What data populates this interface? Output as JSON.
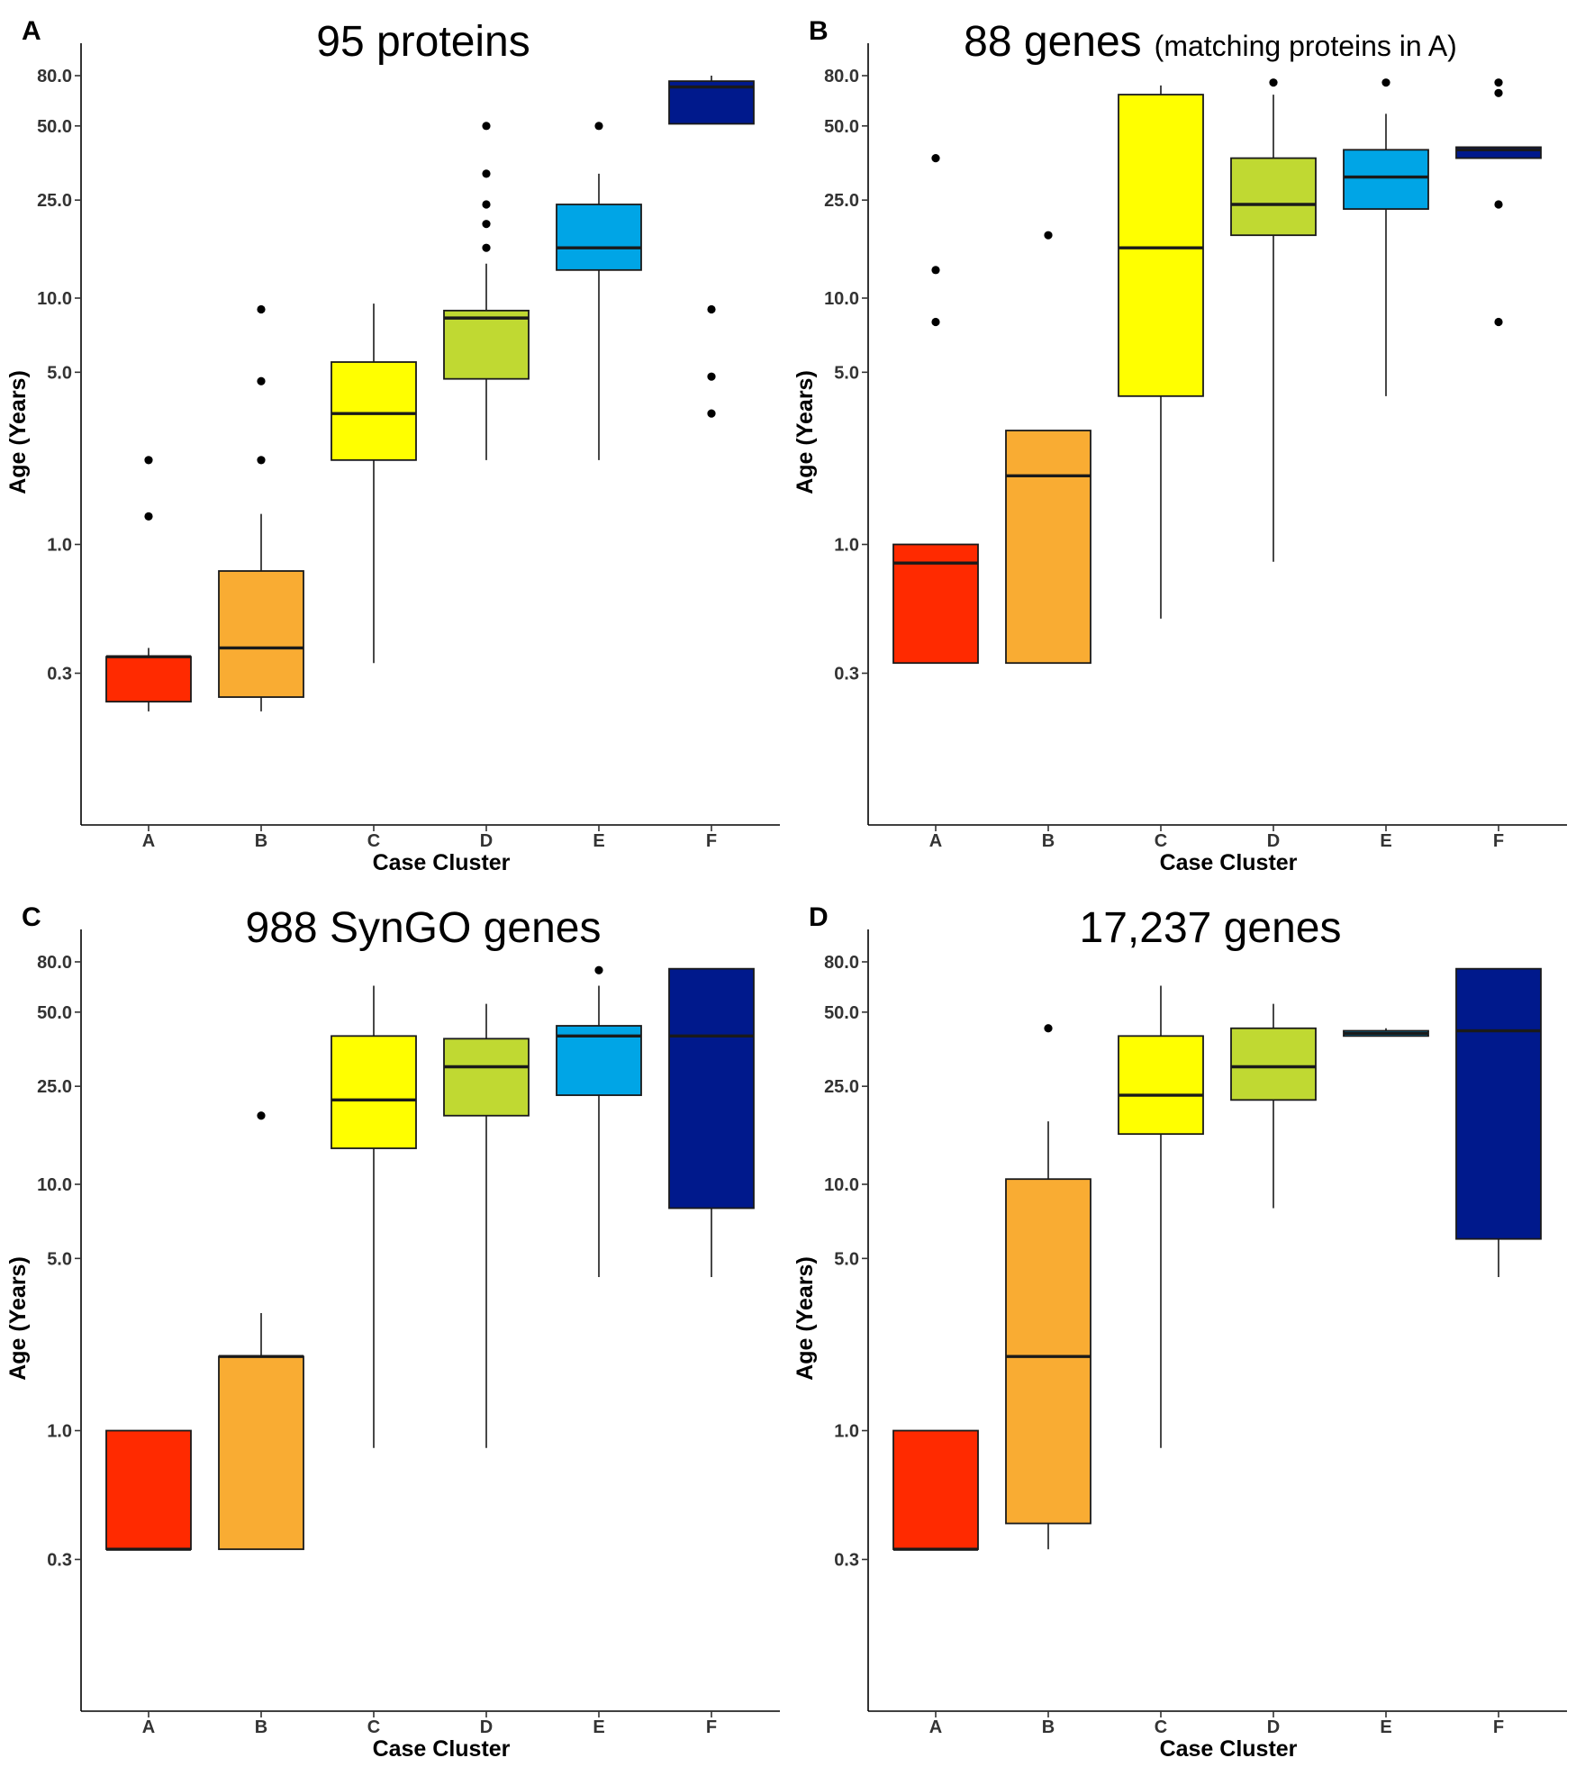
{
  "chart_data": [
    {
      "panel_label": "A",
      "type": "box",
      "title": "95 proteins",
      "subtitle": "",
      "xlabel": "Case Cluster",
      "ylabel": "Age (Years)",
      "y_scale": "log",
      "ylim": [
        0.07,
        110
      ],
      "y_ticks": [
        "80.0",
        "50.0",
        "25.0",
        "10.0",
        "5.0",
        "1.0",
        "0.3"
      ],
      "categories": [
        "A",
        "B",
        "C",
        "D",
        "E",
        "F"
      ],
      "colors": [
        "#ff2a00",
        "#f9ac33",
        "#ffff00",
        "#c0d932",
        "#00a5e6",
        "#00198c"
      ],
      "boxes": [
        {
          "whisker_low": 0.21,
          "q1": 0.23,
          "median": 0.35,
          "q3": 0.35,
          "whisker_high": 0.38,
          "outliers": [
            2.2,
            1.3
          ]
        },
        {
          "whisker_low": 0.21,
          "q1": 0.24,
          "median": 0.38,
          "q3": 0.78,
          "whisker_high": 1.33,
          "outliers": [
            9.0,
            4.6,
            2.2
          ]
        },
        {
          "whisker_low": 0.33,
          "q1": 2.2,
          "median": 3.4,
          "q3": 5.5,
          "whisker_high": 9.5,
          "outliers": []
        },
        {
          "whisker_low": 2.2,
          "q1": 4.7,
          "median": 8.3,
          "q3": 8.9,
          "whisker_high": 13.8,
          "outliers": [
            50.0,
            32.0,
            24.0,
            20.0,
            16.0
          ]
        },
        {
          "whisker_low": 2.2,
          "q1": 13.0,
          "median": 16.0,
          "q3": 24.0,
          "whisker_high": 32.0,
          "outliers": [
            50.0
          ]
        },
        {
          "whisker_low": 51.0,
          "q1": 51.0,
          "median": 72.0,
          "q3": 76.0,
          "whisker_high": 80.0,
          "outliers": [
            9.0,
            4.8,
            3.4
          ]
        }
      ]
    },
    {
      "panel_label": "B",
      "type": "box",
      "title": "88 genes",
      "subtitle": "(matching proteins in A)",
      "xlabel": "Case Cluster",
      "ylabel": "Age (Years)",
      "y_scale": "log",
      "ylim": [
        0.07,
        110
      ],
      "y_ticks": [
        "80.0",
        "50.0",
        "25.0",
        "10.0",
        "5.0",
        "1.0",
        "0.3"
      ],
      "categories": [
        "A",
        "B",
        "C",
        "D",
        "E",
        "F"
      ],
      "colors": [
        "#ff2a00",
        "#f9ac33",
        "#ffff00",
        "#c0d932",
        "#00a5e6",
        "#00198c"
      ],
      "boxes": [
        {
          "whisker_low": 0.33,
          "q1": 0.33,
          "median": 0.84,
          "q3": 1.0,
          "whisker_high": 1.0,
          "outliers": [
            37.0,
            13.0,
            8.0
          ]
        },
        {
          "whisker_low": 0.33,
          "q1": 0.33,
          "median": 1.9,
          "q3": 2.9,
          "whisker_high": 2.9,
          "outliers": [
            18.0
          ]
        },
        {
          "whisker_low": 0.5,
          "q1": 4.0,
          "median": 16.0,
          "q3": 67.0,
          "whisker_high": 73.0,
          "outliers": []
        },
        {
          "whisker_low": 0.85,
          "q1": 18.0,
          "median": 24.0,
          "q3": 37.0,
          "whisker_high": 67.0,
          "outliers": [
            75.0
          ]
        },
        {
          "whisker_low": 4.0,
          "q1": 23.0,
          "median": 31.0,
          "q3": 40.0,
          "whisker_high": 56.0,
          "outliers": [
            75.0
          ]
        },
        {
          "whisker_low": 37.0,
          "q1": 37.0,
          "median": 40.0,
          "q3": 41.0,
          "whisker_high": 41.0,
          "outliers": [
            75.0,
            68.0,
            24.0,
            8.0
          ]
        }
      ]
    },
    {
      "panel_label": "C",
      "type": "box",
      "title": "988 SynGO genes",
      "subtitle": "",
      "xlabel": "Case Cluster",
      "ylabel": "Age (Years)",
      "y_scale": "log",
      "ylim": [
        0.07,
        110
      ],
      "y_ticks": [
        "80.0",
        "50.0",
        "25.0",
        "10.0",
        "5.0",
        "1.0",
        "0.3"
      ],
      "categories": [
        "A",
        "B",
        "C",
        "D",
        "E",
        "F"
      ],
      "colors": [
        "#ff2a00",
        "#f9ac33",
        "#ffff00",
        "#c0d932",
        "#00a5e6",
        "#00198c"
      ],
      "boxes": [
        {
          "whisker_low": 0.33,
          "q1": 0.33,
          "median": 0.33,
          "q3": 1.0,
          "whisker_high": 1.0,
          "outliers": []
        },
        {
          "whisker_low": 0.33,
          "q1": 0.33,
          "median": 2.0,
          "q3": 2.0,
          "whisker_high": 3.0,
          "outliers": [
            19.0
          ]
        },
        {
          "whisker_low": 0.85,
          "q1": 14.0,
          "median": 22.0,
          "q3": 40.0,
          "whisker_high": 64.0,
          "outliers": []
        },
        {
          "whisker_low": 0.85,
          "q1": 19.0,
          "median": 30.0,
          "q3": 39.0,
          "whisker_high": 54.0,
          "outliers": []
        },
        {
          "whisker_low": 4.2,
          "q1": 23.0,
          "median": 40.0,
          "q3": 44.0,
          "whisker_high": 64.0,
          "outliers": [
            74.0
          ]
        },
        {
          "whisker_low": 4.2,
          "q1": 8.0,
          "median": 40.0,
          "q3": 75.0,
          "whisker_high": 75.0,
          "outliers": []
        }
      ]
    },
    {
      "panel_label": "D",
      "type": "box",
      "title": "17,237 genes",
      "subtitle": "",
      "xlabel": "Case Cluster",
      "ylabel": "Age (Years)",
      "y_scale": "log",
      "ylim": [
        0.07,
        110
      ],
      "y_ticks": [
        "80.0",
        "50.0",
        "25.0",
        "10.0",
        "5.0",
        "1.0",
        "0.3"
      ],
      "categories": [
        "A",
        "B",
        "C",
        "D",
        "E",
        "F"
      ],
      "colors": [
        "#ff2a00",
        "#f9ac33",
        "#ffff00",
        "#c0d932",
        "#00a5e6",
        "#00198c"
      ],
      "boxes": [
        {
          "whisker_low": 0.33,
          "q1": 0.33,
          "median": 0.33,
          "q3": 1.0,
          "whisker_high": 1.0,
          "outliers": []
        },
        {
          "whisker_low": 0.33,
          "q1": 0.42,
          "median": 2.0,
          "q3": 10.5,
          "whisker_high": 18.0,
          "outliers": [
            43.0
          ]
        },
        {
          "whisker_low": 0.85,
          "q1": 16.0,
          "median": 23.0,
          "q3": 40.0,
          "whisker_high": 64.0,
          "outliers": []
        },
        {
          "whisker_low": 8.0,
          "q1": 22.0,
          "median": 30.0,
          "q3": 43.0,
          "whisker_high": 54.0,
          "outliers": []
        },
        {
          "whisker_low": 40.0,
          "q1": 40.0,
          "median": 41.0,
          "q3": 42.0,
          "whisker_high": 43.0,
          "outliers": []
        },
        {
          "whisker_low": 4.2,
          "q1": 6.0,
          "median": 42.0,
          "q3": 75.0,
          "whisker_high": 75.0,
          "outliers": []
        }
      ]
    }
  ]
}
